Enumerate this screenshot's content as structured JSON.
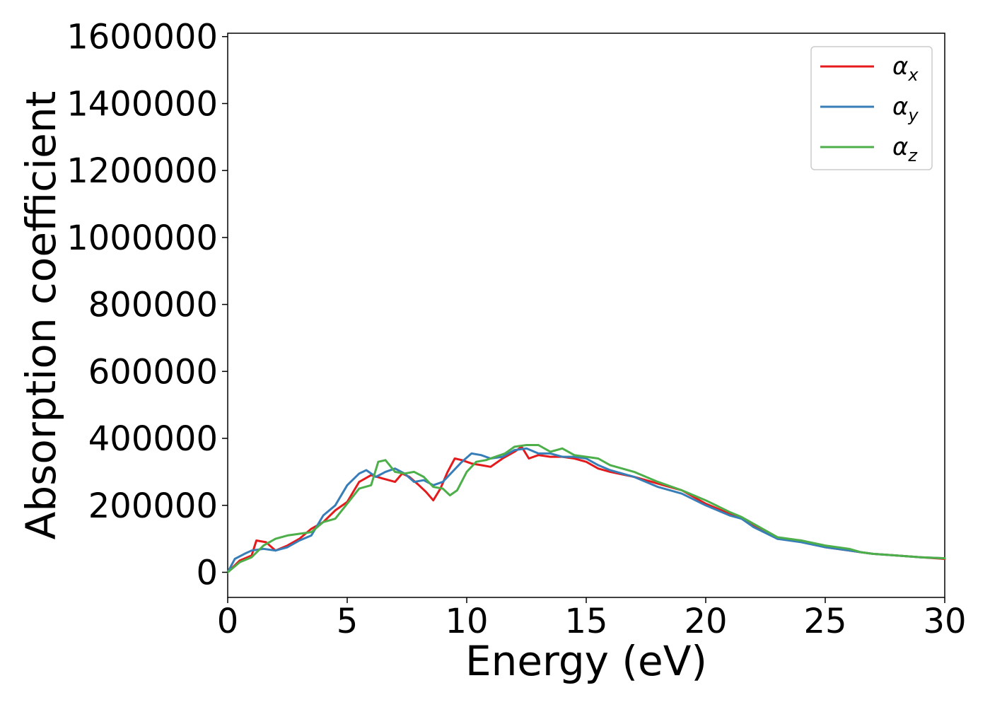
{
  "chart_data": {
    "type": "line",
    "title": "",
    "xlabel": "Energy (eV)",
    "ylabel": "Absorption coefficient",
    "xlim": [
      0,
      30
    ],
    "ylim": [
      -75000,
      1610000
    ],
    "xticks": [
      0,
      5,
      10,
      15,
      20,
      25,
      30
    ],
    "yticks": [
      0,
      200000,
      400000,
      600000,
      800000,
      1000000,
      1200000,
      1400000,
      1600000
    ],
    "xtick_labels": [
      "0",
      "5",
      "10",
      "15",
      "20",
      "25",
      "30"
    ],
    "ytick_labels": [
      "0",
      "200000",
      "400000",
      "600000",
      "800000",
      "1000000",
      "1200000",
      "1400000",
      "1600000"
    ],
    "grid": false,
    "legend_position": "top-right",
    "series": [
      {
        "name": "α",
        "subscript": "x",
        "color": "#e41a1c",
        "x": [
          0,
          0.5,
          1,
          1.2,
          1.6,
          2,
          2.5,
          3,
          3.5,
          4,
          4.5,
          5,
          5.5,
          6,
          6.5,
          7,
          7.3,
          7.6,
          8,
          8.3,
          8.6,
          8.9,
          9.2,
          9.5,
          9.8,
          10.2,
          10.6,
          11,
          11.5,
          12,
          12.3,
          12.6,
          13,
          13.5,
          14,
          14.5,
          15,
          15.5,
          16,
          17,
          17.5,
          18,
          19,
          20,
          21,
          21.5,
          22,
          23,
          24,
          25,
          26,
          26.5,
          27,
          28,
          29,
          30
        ],
        "y": [
          0,
          35000,
          50000,
          95000,
          90000,
          65000,
          80000,
          100000,
          130000,
          150000,
          185000,
          210000,
          270000,
          290000,
          280000,
          270000,
          295000,
          285000,
          260000,
          240000,
          215000,
          250000,
          300000,
          340000,
          335000,
          325000,
          320000,
          315000,
          340000,
          360000,
          375000,
          340000,
          350000,
          345000,
          345000,
          340000,
          330000,
          310000,
          300000,
          285000,
          275000,
          265000,
          245000,
          205000,
          175000,
          160000,
          140000,
          100000,
          95000,
          75000,
          65000,
          60000,
          55000,
          50000,
          45000,
          40000
        ]
      },
      {
        "name": "α",
        "subscript": "y",
        "color": "#377eb8",
        "x": [
          0,
          0.3,
          0.7,
          1,
          1.5,
          2,
          2.5,
          3,
          3.5,
          4,
          4.5,
          5,
          5.5,
          5.8,
          6.2,
          6.6,
          7,
          7.4,
          7.8,
          8.2,
          8.6,
          9,
          9.4,
          9.8,
          10.2,
          10.6,
          11,
          11.5,
          12,
          12.5,
          13,
          13.5,
          14,
          14.5,
          15,
          15.5,
          16,
          17,
          17.5,
          18,
          19,
          20,
          21,
          21.5,
          22,
          23,
          24,
          25,
          26,
          26.5,
          27,
          28,
          29,
          30
        ],
        "y": [
          0,
          40000,
          55000,
          65000,
          70000,
          65000,
          75000,
          95000,
          110000,
          170000,
          200000,
          260000,
          295000,
          305000,
          285000,
          300000,
          310000,
          295000,
          270000,
          275000,
          260000,
          270000,
          300000,
          330000,
          355000,
          350000,
          340000,
          345000,
          365000,
          370000,
          355000,
          355000,
          345000,
          345000,
          340000,
          320000,
          305000,
          285000,
          270000,
          255000,
          235000,
          200000,
          170000,
          160000,
          135000,
          100000,
          90000,
          75000,
          65000,
          60000,
          55000,
          50000,
          45000,
          42000
        ]
      },
      {
        "name": "α",
        "subscript": "z",
        "color": "#4daf4a",
        "x": [
          0,
          0.5,
          1,
          1.5,
          2,
          2.5,
          3,
          3.5,
          4,
          4.5,
          5,
          5.5,
          6,
          6.3,
          6.6,
          7,
          7.4,
          7.8,
          8.2,
          8.6,
          9,
          9.3,
          9.6,
          10,
          10.4,
          10.8,
          11.2,
          11.6,
          12,
          12.5,
          13,
          13.5,
          14,
          14.5,
          15,
          15.5,
          16,
          17,
          17.5,
          18,
          19,
          20,
          21,
          21.5,
          22,
          23,
          24,
          25,
          26,
          26.5,
          27,
          28,
          29,
          30
        ],
        "y": [
          0,
          30000,
          45000,
          80000,
          100000,
          110000,
          115000,
          120000,
          150000,
          160000,
          205000,
          250000,
          260000,
          330000,
          335000,
          300000,
          295000,
          300000,
          285000,
          255000,
          250000,
          230000,
          245000,
          300000,
          330000,
          335000,
          345000,
          355000,
          375000,
          380000,
          380000,
          360000,
          370000,
          350000,
          345000,
          340000,
          320000,
          300000,
          285000,
          270000,
          245000,
          215000,
          180000,
          165000,
          145000,
          105000,
          95000,
          80000,
          70000,
          60000,
          55000,
          50000,
          45000,
          42000
        ]
      }
    ]
  }
}
